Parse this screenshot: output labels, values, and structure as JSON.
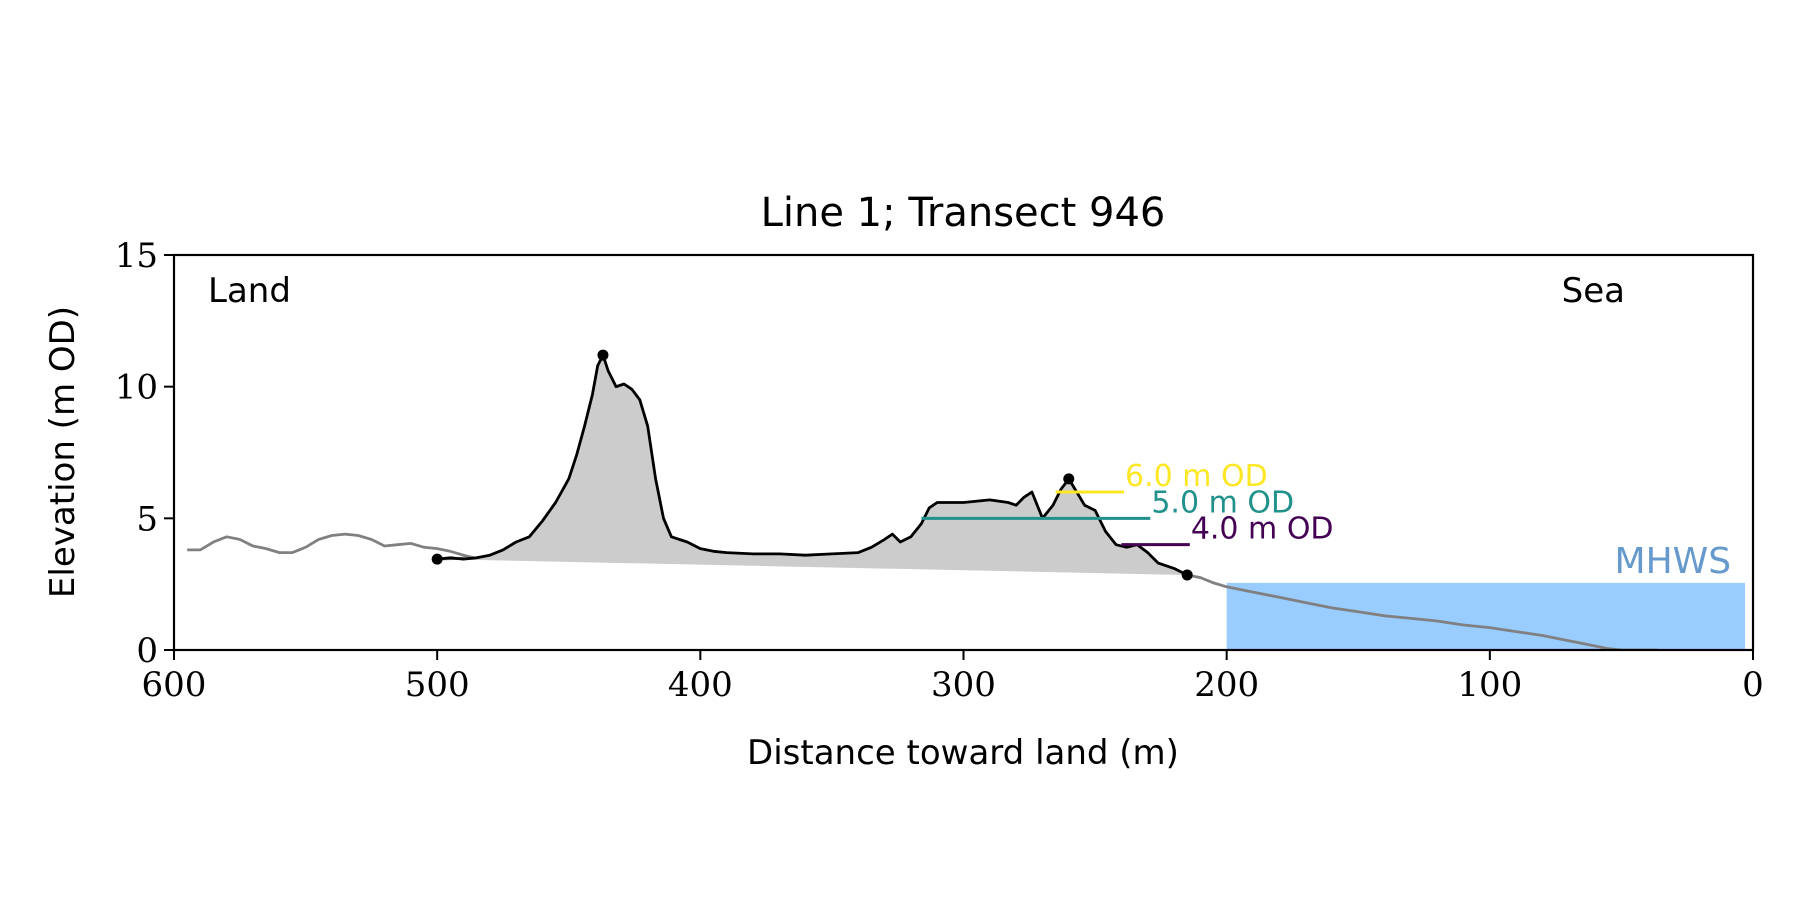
{
  "chart_data": {
    "type": "area",
    "title": "Line 1; Transect 946",
    "xlabel": "Distance toward land (m)",
    "ylabel": "Elevation (m OD)",
    "xlim": [
      600,
      0
    ],
    "ylim": [
      0,
      15
    ],
    "x_ticks": [
      600,
      500,
      400,
      300,
      200,
      100,
      0
    ],
    "x_tick_labels": [
      "600",
      "500",
      "400",
      "300",
      "200",
      "100",
      "0"
    ],
    "y_ticks": [
      0,
      5,
      10,
      15
    ],
    "y_tick_labels": [
      "0",
      "5",
      "10",
      "15"
    ],
    "grid": false,
    "corner_labels": {
      "left": "Land",
      "right": "Sea"
    },
    "colors": {
      "profile": "#000000",
      "outer_profile": "#808080",
      "fill": "#cccccc",
      "mhws": "#99ccff",
      "mhws_label": "#6699cc"
    },
    "full_profile": [
      [
        595,
        3.8
      ],
      [
        590,
        3.8
      ],
      [
        585,
        4.1
      ],
      [
        580,
        4.3
      ],
      [
        575,
        4.2
      ],
      [
        570,
        3.95
      ],
      [
        565,
        3.85
      ],
      [
        560,
        3.7
      ],
      [
        555,
        3.7
      ],
      [
        550,
        3.9
      ],
      [
        545,
        4.2
      ],
      [
        540,
        4.35
      ],
      [
        535,
        4.4
      ],
      [
        530,
        4.35
      ],
      [
        525,
        4.2
      ],
      [
        520,
        3.95
      ],
      [
        515,
        4.0
      ],
      [
        510,
        4.05
      ],
      [
        505,
        3.9
      ],
      [
        500,
        3.85
      ],
      [
        495,
        3.75
      ],
      [
        490,
        3.6
      ],
      [
        486,
        3.5
      ],
      [
        210,
        2.75
      ],
      [
        205,
        2.55
      ],
      [
        200,
        2.4
      ],
      [
        190,
        2.2
      ],
      [
        180,
        2.0
      ],
      [
        170,
        1.8
      ],
      [
        160,
        1.6
      ],
      [
        150,
        1.45
      ],
      [
        140,
        1.3
      ],
      [
        130,
        1.2
      ],
      [
        120,
        1.1
      ],
      [
        110,
        0.95
      ],
      [
        100,
        0.85
      ],
      [
        90,
        0.7
      ],
      [
        80,
        0.55
      ],
      [
        70,
        0.35
      ],
      [
        60,
        0.15
      ],
      [
        55,
        0.05
      ],
      [
        50,
        0.0
      ],
      [
        40,
        0.0
      ],
      [
        36,
        0.0
      ]
    ],
    "analysis_profile": [
      [
        500,
        3.45
      ],
      [
        495,
        3.5
      ],
      [
        490,
        3.45
      ],
      [
        485,
        3.5
      ],
      [
        480,
        3.6
      ],
      [
        475,
        3.8
      ],
      [
        470,
        4.1
      ],
      [
        465,
        4.3
      ],
      [
        460,
        4.9
      ],
      [
        455,
        5.6
      ],
      [
        450,
        6.5
      ],
      [
        447,
        7.4
      ],
      [
        444,
        8.5
      ],
      [
        441,
        9.7
      ],
      [
        439,
        10.8
      ],
      [
        437,
        11.2
      ],
      [
        435,
        10.6
      ],
      [
        432,
        10.0
      ],
      [
        429,
        10.1
      ],
      [
        426,
        9.9
      ],
      [
        423,
        9.5
      ],
      [
        420,
        8.5
      ],
      [
        417,
        6.5
      ],
      [
        414,
        5.0
      ],
      [
        411,
        4.3
      ],
      [
        405,
        4.1
      ],
      [
        400,
        3.85
      ],
      [
        395,
        3.75
      ],
      [
        390,
        3.7
      ],
      [
        380,
        3.65
      ],
      [
        370,
        3.65
      ],
      [
        360,
        3.6
      ],
      [
        350,
        3.65
      ],
      [
        340,
        3.7
      ],
      [
        335,
        3.9
      ],
      [
        330,
        4.2
      ],
      [
        327,
        4.4
      ],
      [
        324,
        4.1
      ],
      [
        320,
        4.3
      ],
      [
        316,
        4.8
      ],
      [
        313,
        5.4
      ],
      [
        310,
        5.6
      ],
      [
        300,
        5.6
      ],
      [
        290,
        5.7
      ],
      [
        283,
        5.6
      ],
      [
        280,
        5.5
      ],
      [
        277,
        5.8
      ],
      [
        274,
        6.0
      ],
      [
        270,
        5.0
      ],
      [
        266,
        5.5
      ],
      [
        263,
        6.1
      ],
      [
        260,
        6.5
      ],
      [
        257,
        6.0
      ],
      [
        254,
        5.5
      ],
      [
        250,
        5.3
      ],
      [
        246,
        4.5
      ],
      [
        242,
        4.0
      ],
      [
        238,
        3.9
      ],
      [
        234,
        4.0
      ],
      [
        230,
        3.7
      ],
      [
        226,
        3.3
      ],
      [
        220,
        3.1
      ],
      [
        215,
        2.85
      ]
    ],
    "base_line": [
      [
        500,
        3.45
      ],
      [
        215,
        2.85
      ]
    ],
    "endpoints": [
      [
        500,
        3.45
      ],
      [
        215,
        2.85
      ]
    ],
    "peaks": [
      [
        437,
        11.2
      ],
      [
        260,
        6.5
      ]
    ],
    "mhws": {
      "label": "MHWS",
      "value": 2.55,
      "x_start": 200,
      "x_end": 3
    },
    "levels": [
      {
        "label": "6.0 m OD",
        "value": 6.0,
        "color": "#fde725",
        "x_start": 265,
        "x_end": 239
      },
      {
        "label": "5.0 m OD",
        "value": 5.0,
        "color": "#21918c",
        "x_start": 316,
        "x_end": 229
      },
      {
        "label": "4.0 m OD",
        "value": 4.0,
        "color": "#440154",
        "x_start": 240,
        "x_end": 214
      }
    ]
  }
}
